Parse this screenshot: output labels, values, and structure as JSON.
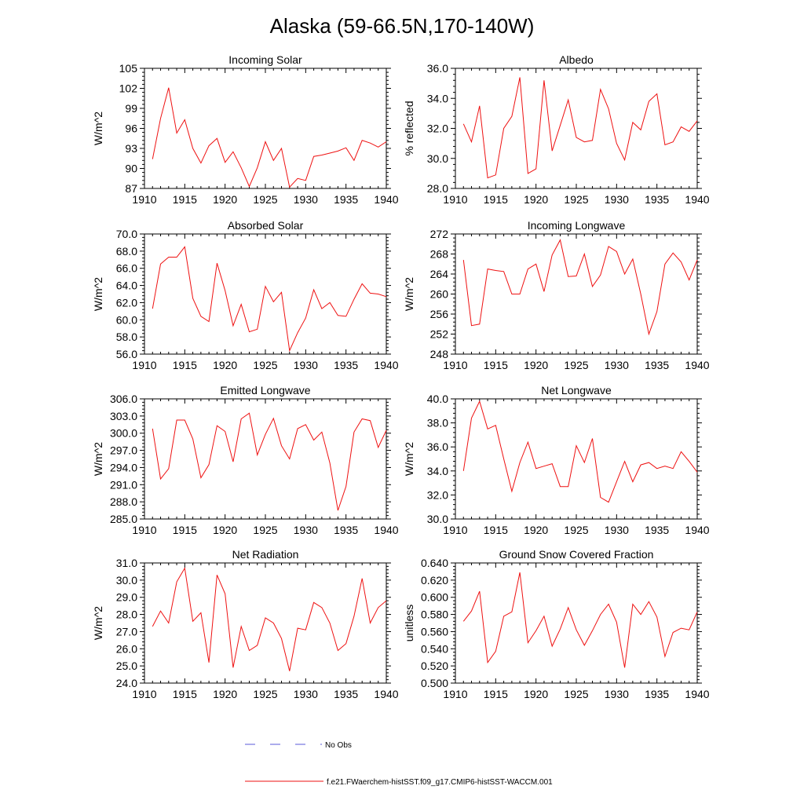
{
  "title": "Alaska (59-66.5N,170-140W)",
  "legend": {
    "obs_label": "No Obs",
    "obs_color": "#5a5ad8",
    "model_label": "f.e21.FWaerchem-histSST.f09_g17.CMIP6-histSST-WACCM.001",
    "model_color": "#ee1111"
  },
  "chart_data": [
    {
      "type": "line",
      "title": "Incoming Solar",
      "ylabel": "W/m^2",
      "x": [
        1911,
        1912,
        1913,
        1914,
        1915,
        1916,
        1917,
        1918,
        1919,
        1920,
        1921,
        1922,
        1923,
        1924,
        1925,
        1926,
        1927,
        1928,
        1929,
        1930,
        1931,
        1932,
        1933,
        1934,
        1935,
        1936,
        1937,
        1938,
        1939,
        1940
      ],
      "xlim": [
        1910,
        1940
      ],
      "xticks": [
        1910,
        1915,
        1920,
        1925,
        1930,
        1935,
        1940
      ],
      "ylim": [
        87,
        105
      ],
      "yticks": [
        87,
        90,
        93,
        96,
        99,
        102,
        105
      ],
      "ytick_labels": [
        "87",
        "90",
        "93",
        "96",
        "99",
        "102",
        "105"
      ],
      "series": [
        {
          "values": [
            91.4,
            97.5,
            102.1,
            95.3,
            97.3,
            93.0,
            90.8,
            93.4,
            94.5,
            90.9,
            92.5,
            90.1,
            87.3,
            90.1,
            94.0,
            91.2,
            93.0,
            87.2,
            88.5,
            88.2,
            91.8,
            92.0,
            92.3,
            92.6,
            93.1,
            91.2,
            94.2,
            93.8,
            93.2,
            94.0
          ]
        }
      ]
    },
    {
      "type": "line",
      "title": "Albedo",
      "ylabel": "% reflected",
      "x": [
        1911,
        1912,
        1913,
        1914,
        1915,
        1916,
        1917,
        1918,
        1919,
        1920,
        1921,
        1922,
        1923,
        1924,
        1925,
        1926,
        1927,
        1928,
        1929,
        1930,
        1931,
        1932,
        1933,
        1934,
        1935,
        1936,
        1937,
        1938,
        1939,
        1940
      ],
      "xlim": [
        1910,
        1940
      ],
      "xticks": [
        1910,
        1915,
        1920,
        1925,
        1930,
        1935,
        1940
      ],
      "ylim": [
        28,
        36
      ],
      "yticks": [
        28,
        30,
        32,
        34,
        36
      ],
      "ytick_labels": [
        "28.0",
        "30.0",
        "32.0",
        "34.0",
        "36.0"
      ],
      "series": [
        {
          "values": [
            32.3,
            31.1,
            33.5,
            28.7,
            28.9,
            32.0,
            32.8,
            35.4,
            29.0,
            29.3,
            35.2,
            30.5,
            32.2,
            33.9,
            31.4,
            31.1,
            31.2,
            34.6,
            33.3,
            31.0,
            29.9,
            32.4,
            31.9,
            33.8,
            34.3,
            30.9,
            31.1,
            32.1,
            31.8,
            32.5
          ]
        }
      ]
    },
    {
      "type": "line",
      "title": "Absorbed Solar",
      "ylabel": "W/m^2",
      "x": [
        1911,
        1912,
        1913,
        1914,
        1915,
        1916,
        1917,
        1918,
        1919,
        1920,
        1921,
        1922,
        1923,
        1924,
        1925,
        1926,
        1927,
        1928,
        1929,
        1930,
        1931,
        1932,
        1933,
        1934,
        1935,
        1936,
        1937,
        1938,
        1939,
        1940
      ],
      "xlim": [
        1910,
        1940
      ],
      "xticks": [
        1910,
        1915,
        1920,
        1925,
        1930,
        1935,
        1940
      ],
      "ylim": [
        56,
        70
      ],
      "yticks": [
        56,
        58,
        60,
        62,
        64,
        66,
        68,
        70
      ],
      "ytick_labels": [
        "56.0",
        "58.0",
        "60.0",
        "62.0",
        "64.0",
        "66.0",
        "68.0",
        "70.0"
      ],
      "series": [
        {
          "values": [
            61.3,
            66.5,
            67.3,
            67.3,
            68.5,
            62.5,
            60.4,
            59.8,
            66.6,
            63.4,
            59.3,
            61.8,
            58.6,
            58.9,
            63.9,
            62.1,
            63.2,
            56.4,
            58.5,
            60.2,
            63.5,
            61.3,
            62.0,
            60.5,
            60.4,
            62.4,
            64.2,
            63.1,
            63.0,
            62.7
          ]
        }
      ]
    },
    {
      "type": "line",
      "title": "Incoming Longwave",
      "ylabel": "W/m^2",
      "x": [
        1911,
        1912,
        1913,
        1914,
        1915,
        1916,
        1917,
        1918,
        1919,
        1920,
        1921,
        1922,
        1923,
        1924,
        1925,
        1926,
        1927,
        1928,
        1929,
        1930,
        1931,
        1932,
        1933,
        1934,
        1935,
        1936,
        1937,
        1938,
        1939,
        1940
      ],
      "xlim": [
        1910,
        1940
      ],
      "xticks": [
        1910,
        1915,
        1920,
        1925,
        1930,
        1935,
        1940
      ],
      "ylim": [
        248,
        272
      ],
      "yticks": [
        248,
        252,
        256,
        260,
        264,
        268,
        272
      ],
      "ytick_labels": [
        "248",
        "252",
        "256",
        "260",
        "264",
        "268",
        "272"
      ],
      "series": [
        {
          "values": [
            266.8,
            253.7,
            254.0,
            265.0,
            264.7,
            264.5,
            260.0,
            260.0,
            265.0,
            266.0,
            260.5,
            267.8,
            270.8,
            263.5,
            263.6,
            268.0,
            261.5,
            263.8,
            269.5,
            268.5,
            264.0,
            267.0,
            260.0,
            252.0,
            256.5,
            266.0,
            268.2,
            266.4,
            262.8,
            266.8
          ]
        }
      ]
    },
    {
      "type": "line",
      "title": "Emitted Longwave",
      "ylabel": "W/m^2",
      "x": [
        1911,
        1912,
        1913,
        1914,
        1915,
        1916,
        1917,
        1918,
        1919,
        1920,
        1921,
        1922,
        1923,
        1924,
        1925,
        1926,
        1927,
        1928,
        1929,
        1930,
        1931,
        1932,
        1933,
        1934,
        1935,
        1936,
        1937,
        1938,
        1939,
        1940
      ],
      "xlim": [
        1910,
        1940
      ],
      "xticks": [
        1910,
        1915,
        1920,
        1925,
        1930,
        1935,
        1940
      ],
      "ylim": [
        285,
        306
      ],
      "yticks": [
        285,
        288,
        291,
        294,
        297,
        300,
        303,
        306
      ],
      "ytick_labels": [
        "285.0",
        "288.0",
        "291.0",
        "294.0",
        "297.0",
        "300.0",
        "303.0",
        "306.0"
      ],
      "series": [
        {
          "values": [
            300.8,
            292.0,
            293.8,
            302.3,
            302.3,
            299.0,
            292.2,
            294.5,
            301.3,
            300.3,
            295.0,
            302.5,
            303.5,
            296.2,
            299.8,
            302.6,
            297.8,
            295.5,
            300.8,
            301.5,
            298.8,
            300.2,
            294.8,
            286.5,
            290.7,
            300.2,
            302.5,
            302.2,
            297.5,
            300.5
          ]
        }
      ]
    },
    {
      "type": "line",
      "title": "Net Longwave",
      "ylabel": "W/m^2",
      "x": [
        1911,
        1912,
        1913,
        1914,
        1915,
        1916,
        1917,
        1918,
        1919,
        1920,
        1921,
        1922,
        1923,
        1924,
        1925,
        1926,
        1927,
        1928,
        1929,
        1930,
        1931,
        1932,
        1933,
        1934,
        1935,
        1936,
        1937,
        1938,
        1939,
        1940
      ],
      "xlim": [
        1910,
        1940
      ],
      "xticks": [
        1910,
        1915,
        1920,
        1925,
        1930,
        1935,
        1940
      ],
      "ylim": [
        30,
        40
      ],
      "yticks": [
        30,
        32,
        34,
        36,
        38,
        40
      ],
      "ytick_labels": [
        "30.0",
        "32.0",
        "34.0",
        "36.0",
        "38.0",
        "40.0"
      ],
      "series": [
        {
          "values": [
            34.0,
            38.4,
            39.8,
            37.5,
            37.8,
            35.0,
            32.3,
            34.7,
            36.4,
            34.2,
            34.4,
            34.6,
            32.7,
            32.7,
            36.1,
            34.7,
            36.7,
            31.8,
            31.4,
            33.1,
            34.8,
            33.1,
            34.5,
            34.7,
            34.2,
            34.4,
            34.2,
            35.6,
            34.8,
            33.9
          ]
        }
      ]
    },
    {
      "type": "line",
      "title": "Net Radiation",
      "ylabel": "W/m^2",
      "x": [
        1911,
        1912,
        1913,
        1914,
        1915,
        1916,
        1917,
        1918,
        1919,
        1920,
        1921,
        1922,
        1923,
        1924,
        1925,
        1926,
        1927,
        1928,
        1929,
        1930,
        1931,
        1932,
        1933,
        1934,
        1935,
        1936,
        1937,
        1938,
        1939,
        1940
      ],
      "xlim": [
        1910,
        1940
      ],
      "xticks": [
        1910,
        1915,
        1920,
        1925,
        1930,
        1935,
        1940
      ],
      "ylim": [
        24,
        31
      ],
      "yticks": [
        24,
        25,
        26,
        27,
        28,
        29,
        30,
        31
      ],
      "ytick_labels": [
        "24.0",
        "25.0",
        "26.0",
        "27.0",
        "28.0",
        "29.0",
        "30.0",
        "31.0"
      ],
      "series": [
        {
          "values": [
            27.3,
            28.2,
            27.5,
            29.9,
            30.7,
            27.6,
            28.1,
            25.2,
            30.3,
            29.2,
            24.9,
            27.3,
            25.9,
            26.2,
            27.8,
            27.5,
            26.6,
            24.7,
            27.2,
            27.1,
            28.7,
            28.4,
            27.5,
            25.9,
            26.3,
            27.9,
            30.1,
            27.5,
            28.4,
            28.8
          ]
        }
      ]
    },
    {
      "type": "line",
      "title": "Ground Snow Covered Fraction",
      "ylabel": "unitless",
      "x": [
        1911,
        1912,
        1913,
        1914,
        1915,
        1916,
        1917,
        1918,
        1919,
        1920,
        1921,
        1922,
        1923,
        1924,
        1925,
        1926,
        1927,
        1928,
        1929,
        1930,
        1931,
        1932,
        1933,
        1934,
        1935,
        1936,
        1937,
        1938,
        1939,
        1940
      ],
      "xlim": [
        1910,
        1940
      ],
      "xticks": [
        1910,
        1915,
        1920,
        1925,
        1930,
        1935,
        1940
      ],
      "ylim": [
        0.5,
        0.64
      ],
      "yticks": [
        0.5,
        0.52,
        0.54,
        0.56,
        0.58,
        0.6,
        0.62,
        0.64
      ],
      "ytick_labels": [
        "0.500",
        "0.520",
        "0.540",
        "0.560",
        "0.580",
        "0.600",
        "0.620",
        "0.640"
      ],
      "series": [
        {
          "values": [
            0.572,
            0.584,
            0.607,
            0.524,
            0.537,
            0.578,
            0.583,
            0.629,
            0.547,
            0.561,
            0.578,
            0.543,
            0.563,
            0.588,
            0.562,
            0.544,
            0.561,
            0.58,
            0.592,
            0.571,
            0.518,
            0.592,
            0.58,
            0.595,
            0.577,
            0.531,
            0.559,
            0.564,
            0.562,
            0.583
          ]
        }
      ]
    }
  ]
}
